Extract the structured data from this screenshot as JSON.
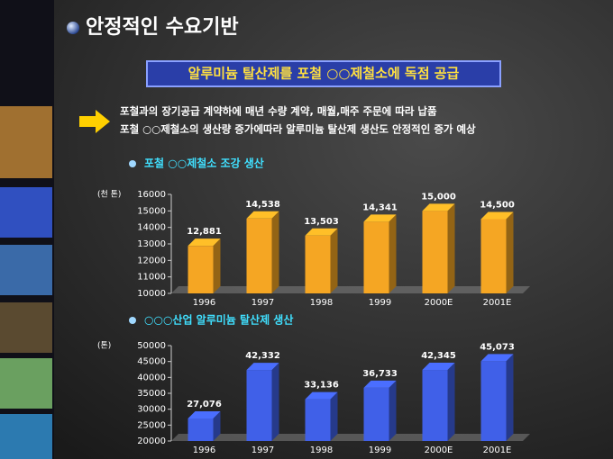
{
  "slide_title": "안정적인 수요기반",
  "banner": "알루미늄 탈산제를 포철 ○○제철소에 독점  공급",
  "bullets": [
    "포철과의  장기공급 계약하에 매년 수량 계약, 매월,매주 주문에  따라 납품",
    "포철 ○○제철소의  생산량 증가에따라 알루미늄 탈산제 생산도 안정적인 증가  예상"
  ],
  "chart_data": [
    {
      "type": "bar",
      "title": "포철 ○○제철소 조강 생산",
      "y_label": "(천 톤)",
      "categories": [
        "1996",
        "1997",
        "1998",
        "1999",
        "2000E",
        "2001E"
      ],
      "values": [
        12881,
        14538,
        13503,
        14341,
        15000,
        14500
      ],
      "value_labels": [
        "12,881",
        "14,538",
        "13,503",
        "14,341",
        "15,000",
        "14,500"
      ],
      "color": "#f5a623",
      "ylim": [
        10000,
        16000
      ],
      "yticks": [
        10000,
        11000,
        12000,
        13000,
        14000,
        15000,
        16000
      ]
    },
    {
      "type": "bar",
      "title": "○○○산업 알루미늄 탈산제 생산",
      "y_label": "(톤)",
      "categories": [
        "1996",
        "1997",
        "1998",
        "1999",
        "2000E",
        "2001E"
      ],
      "values": [
        27076,
        42332,
        33136,
        36733,
        42345,
        45073
      ],
      "value_labels": [
        "27,076",
        "42,332",
        "33,136",
        "36,733",
        "42,345",
        "45,073"
      ],
      "color": "#4060e8",
      "ylim": [
        20000,
        50000
      ],
      "yticks": [
        20000,
        25000,
        30000,
        35000,
        40000,
        45000,
        50000
      ]
    }
  ]
}
